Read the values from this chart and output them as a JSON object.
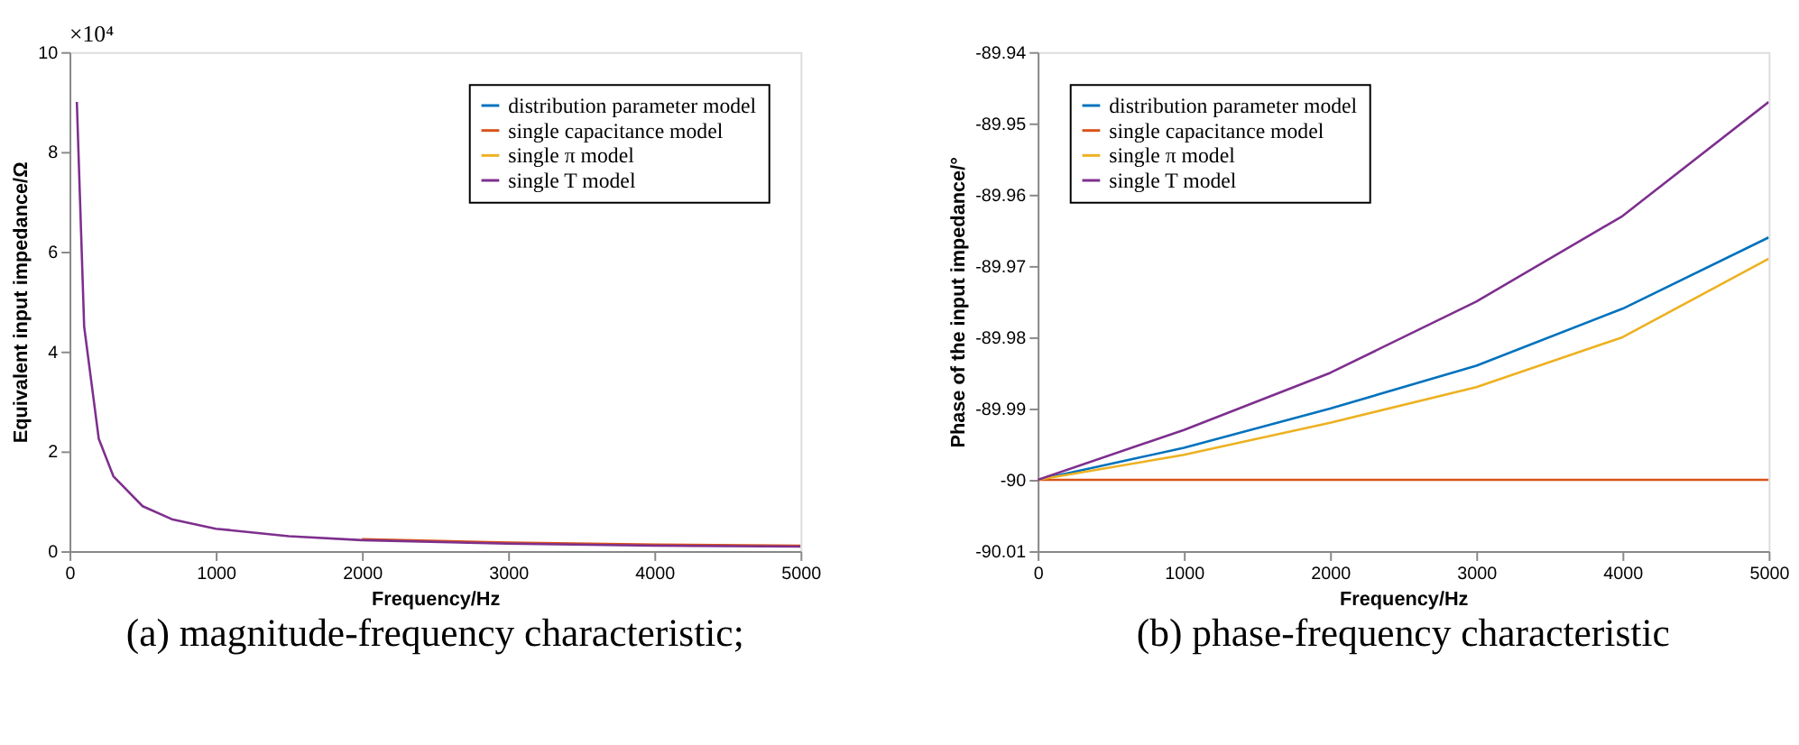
{
  "chart_data": [
    {
      "type": "line",
      "title": "(a) magnitude-frequency characteristic;",
      "xlabel": "Frequency/Hz",
      "ylabel": "Equivalent input impedance/Ω",
      "annotations": [
        "×10⁴"
      ],
      "x": [
        50,
        100,
        200,
        300,
        500,
        700,
        1000,
        1500,
        2000,
        3000,
        4000,
        5000
      ],
      "series": [
        {
          "name": "distribution parameter model",
          "color": "#0072bd",
          "values": [
            null,
            null,
            null,
            null,
            null,
            null,
            null,
            null,
            null,
            null,
            null,
            null
          ]
        },
        {
          "name": "single capacitance model",
          "color": "#d95319",
          "values": [
            null,
            null,
            null,
            null,
            null,
            null,
            null,
            null,
            0.24,
            0.17,
            0.13,
            0.11
          ]
        },
        {
          "name": "single π model",
          "color": "#edb120",
          "values": [
            null,
            null,
            null,
            null,
            null,
            null,
            null,
            null,
            null,
            null,
            null,
            null
          ]
        },
        {
          "name": "single T model",
          "color": "#7e2f8e",
          "values": [
            9.0,
            4.5,
            2.25,
            1.5,
            0.9,
            0.64,
            0.45,
            0.3,
            0.22,
            0.15,
            0.11,
            0.09
          ]
        }
      ],
      "xlim": [
        0,
        5000
      ],
      "xticks": [
        0,
        1000,
        2000,
        3000,
        4000,
        5000
      ],
      "ylim": [
        0,
        10
      ],
      "yticks": [
        0,
        2,
        4,
        6,
        8,
        10
      ],
      "legend": "top right",
      "grid": false
    },
    {
      "type": "line",
      "title": "(b) phase-frequency characteristic",
      "xlabel": "Frequency/Hz",
      "ylabel": "Phase of the input impedance/°",
      "x": [
        0,
        1000,
        2000,
        3000,
        4000,
        5000
      ],
      "series": [
        {
          "name": "distribution parameter model",
          "color": "#0072bd",
          "values": [
            -90.0,
            -89.9955,
            -89.99,
            -89.984,
            -89.976,
            -89.966
          ]
        },
        {
          "name": "single capacitance model",
          "color": "#d95319",
          "values": [
            -90.0,
            -90.0,
            -90.0,
            -90.0,
            -90.0,
            -90.0
          ]
        },
        {
          "name": "single π model",
          "color": "#edb120",
          "values": [
            -90.0,
            -89.9965,
            -89.992,
            -89.987,
            -89.98,
            -89.969
          ]
        },
        {
          "name": "single T model",
          "color": "#7e2f8e",
          "values": [
            -90.0,
            -89.993,
            -89.985,
            -89.975,
            -89.963,
            -89.947
          ]
        }
      ],
      "xlim": [
        0,
        5000
      ],
      "xticks": [
        0,
        1000,
        2000,
        3000,
        4000,
        5000
      ],
      "ylim": [
        -90.01,
        -89.94
      ],
      "yticks": [
        -90.01,
        -90,
        -89.99,
        -89.98,
        -89.97,
        -89.96,
        -89.95,
        -89.94
      ],
      "legend": "top left",
      "grid": false
    }
  ]
}
